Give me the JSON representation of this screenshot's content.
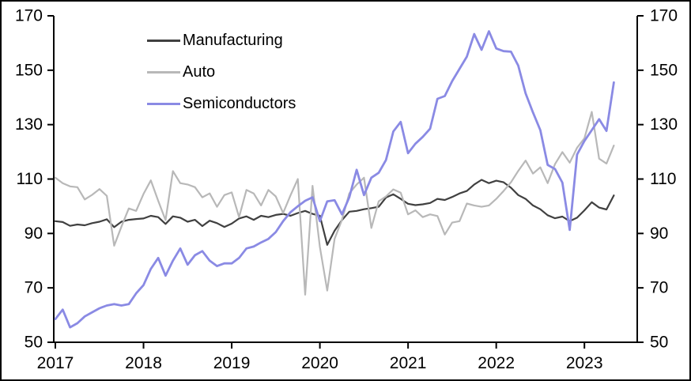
{
  "chart_data": {
    "type": "line",
    "title": "",
    "xlabel": "",
    "ylabel": "",
    "x_unit": "monthly, Jan 2017 - May 2023",
    "x_ticks": [
      "2017",
      "2018",
      "2019",
      "2020",
      "2021",
      "2022",
      "2023"
    ],
    "y_ticks_left": [
      "50",
      "70",
      "90",
      "110",
      "130",
      "150",
      "170"
    ],
    "y_ticks_right": [
      "50",
      "70",
      "90",
      "110",
      "130",
      "150",
      "170"
    ],
    "ylim": [
      50,
      170
    ],
    "grid": false,
    "legend_position": "top-left-inside",
    "colors": {
      "background": "#ffffff",
      "axis": "#000000",
      "manufacturing": "#404040",
      "auto": "#b8b8b8",
      "semiconductors": "#8a8ae4"
    },
    "series": [
      {
        "name": "Manufacturing",
        "color": "#404040",
        "values": [
          94.5,
          94.2,
          92.8,
          93.3,
          93.0,
          93.8,
          94.3,
          95.2,
          92.3,
          94.3,
          95.0,
          95.3,
          95.5,
          96.5,
          96.0,
          93.5,
          96.3,
          95.8,
          94.3,
          95.0,
          92.7,
          94.7,
          93.8,
          92.4,
          93.6,
          95.5,
          96.3,
          95.0,
          96.5,
          96.0,
          96.8,
          97.2,
          96.5,
          97.5,
          98.3,
          97.2,
          96.5,
          85.8,
          91.0,
          94.9,
          98.0,
          98.3,
          98.9,
          99.3,
          99.8,
          103.2,
          104.4,
          102.7,
          100.9,
          100.4,
          100.7,
          101.2,
          102.7,
          102.3,
          103.4,
          104.7,
          105.6,
          108.0,
          109.7,
          108.5,
          109.4,
          108.8,
          106.8,
          104.1,
          102.7,
          100.3,
          98.9,
          96.7,
          95.6,
          96.2,
          94.5,
          95.8,
          98.5,
          101.5,
          99.5,
          98.8,
          104.0
        ]
      },
      {
        "name": "Auto",
        "color": "#b8b8b8",
        "values": [
          110.5,
          108.5,
          107.3,
          107.0,
          102.5,
          104.2,
          106.3,
          103.8,
          85.5,
          92.5,
          99.2,
          98.3,
          104.5,
          109.5,
          102.0,
          94.9,
          112.9,
          108.5,
          108.0,
          107.0,
          103.3,
          104.7,
          99.8,
          104.1,
          105.1,
          96.0,
          106.0,
          104.7,
          100.3,
          106.0,
          103.6,
          97.5,
          104.0,
          110.0,
          67.5,
          107.5,
          85.0,
          69.0,
          88.0,
          95.0,
          104.7,
          108.0,
          110.5,
          92.0,
          101.8,
          103.6,
          106.2,
          105.0,
          97.0,
          98.5,
          96.0,
          97.0,
          96.4,
          89.6,
          94.0,
          94.5,
          101.0,
          100.3,
          99.8,
          100.3,
          102.7,
          105.6,
          108.8,
          113.0,
          116.8,
          112.0,
          114.3,
          108.5,
          115.5,
          119.9,
          116.0,
          121.5,
          125.0,
          134.7,
          117.5,
          115.7,
          122.3
        ]
      },
      {
        "name": "Semiconductors",
        "color": "#8a8ae4",
        "values": [
          58.5,
          62.0,
          55.5,
          57.0,
          59.5,
          61.0,
          62.5,
          63.5,
          64.0,
          63.5,
          64.0,
          68.0,
          71.0,
          77.0,
          81.0,
          74.5,
          80.0,
          84.5,
          78.5,
          82.0,
          83.5,
          80.0,
          78.0,
          79.0,
          79.0,
          81.0,
          84.5,
          85.2,
          86.7,
          88.0,
          90.5,
          94.5,
          97.8,
          100.0,
          102.0,
          103.3,
          94.5,
          101.8,
          102.2,
          97.0,
          103.3,
          113.4,
          104.1,
          110.5,
          112.3,
          117.0,
          127.5,
          131.0,
          119.5,
          123.0,
          125.5,
          128.5,
          139.5,
          140.5,
          146.0,
          150.5,
          155.0,
          163.3,
          157.5,
          164.3,
          158.0,
          157.0,
          156.8,
          151.7,
          141.5,
          134.5,
          128.0,
          115.2,
          113.7,
          108.7,
          91.3,
          119.0,
          124.0,
          128.0,
          132.0,
          127.7,
          145.5
        ]
      }
    ]
  }
}
